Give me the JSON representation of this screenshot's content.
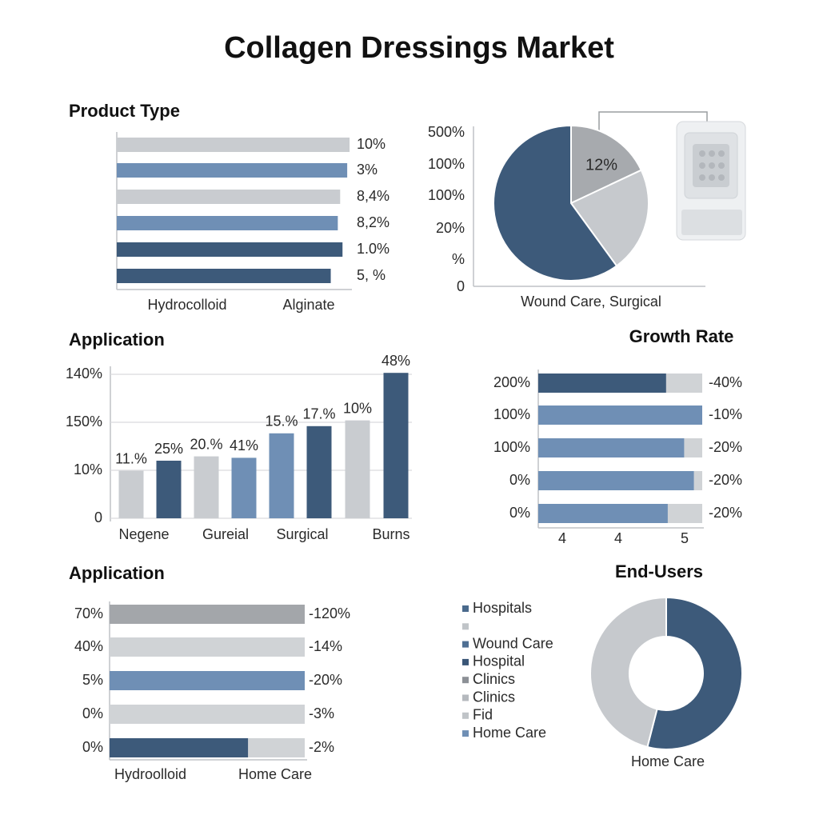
{
  "title": "Collagen Dressings Market",
  "chart_data": [
    {
      "type": "bar",
      "horizontal": true,
      "title": "Product Type",
      "categories": [
        "10%",
        "3%",
        "8,4%",
        "8,2%",
        "1.0%",
        "5, %"
      ],
      "values": [
        99,
        98,
        95,
        94,
        96,
        91
      ],
      "colors": [
        "#c9ccd0",
        "#6f8fb5",
        "#c9ccd0",
        "#6f8fb5",
        "#3d5a7a",
        "#3d5a7a"
      ],
      "xlim": [
        0,
        100
      ],
      "x_labels": [
        "Hydrocolloid",
        "Alginate"
      ]
    },
    {
      "type": "pie",
      "y_labels": [
        "500%",
        "100%",
        "100%",
        "20%",
        "%",
        "0"
      ],
      "x_label": "Wound Care, Surgical",
      "values": [
        18,
        22,
        60
      ],
      "colors": [
        "#a7aaae",
        "#c6c9cd",
        "#3d5a7a"
      ],
      "annotation": "12%"
    },
    {
      "type": "bar",
      "title": "Application",
      "y_labels": [
        "140%",
        "150%",
        "10%",
        "0"
      ],
      "values": [
        33,
        40,
        43,
        42,
        59,
        64,
        68,
        101
      ],
      "annotations": [
        "11.%",
        "25%",
        "20.%",
        "41%",
        "15.%",
        "17.%",
        "10%",
        "48%"
      ],
      "colors": [
        "#c9ccd0",
        "#3d5a7a",
        "#c9ccd0",
        "#6f8fb5",
        "#6f8fb5",
        "#3d5a7a",
        "#c9ccd0",
        "#3d5a7a"
      ],
      "ylim": [
        0,
        100
      ],
      "x_labels": [
        "Negene",
        "Gureial",
        "Surgical",
        "Burns"
      ]
    },
    {
      "type": "bar",
      "horizontal": true,
      "stacked": true,
      "title": "Growth Rate",
      "categories": [
        "200%",
        "100%",
        "100%",
        "0%",
        "0%"
      ],
      "end_labels": [
        "-40%",
        "-10%",
        "-20%",
        "-20%",
        "-20%"
      ],
      "values": [
        78,
        100,
        89,
        95,
        79
      ],
      "rest_values": [
        22,
        0,
        11,
        5,
        21
      ],
      "colors": [
        "#3d5a7a",
        "#6f8fb5",
        "#6f8fb5",
        "#6f8fb5",
        "#6f8fb5"
      ],
      "rest_color": "#d0d3d6",
      "xlim": [
        0,
        100
      ],
      "x_labels": [
        "4",
        "4",
        "5"
      ]
    },
    {
      "type": "bar",
      "horizontal": true,
      "stacked": true,
      "title": "Application",
      "categories": [
        "70%",
        "40%",
        "5%",
        "0%",
        "0%"
      ],
      "end_labels": [
        "-120%",
        "-14%",
        "-20%",
        "-3%",
        "-2%"
      ],
      "values": [
        100,
        100,
        100,
        100,
        71
      ],
      "rest_values": [
        0,
        0,
        0,
        0,
        29
      ],
      "colors": [
        "#a3a6aa",
        "#d0d3d6",
        "#6f8fb5",
        "#d0d3d6",
        "#3d5a7a"
      ],
      "rest_color": "#d0d3d6",
      "xlim": [
        0,
        100
      ],
      "x_labels": [
        "Hydroolloid",
        "Home Care"
      ]
    },
    {
      "type": "pie",
      "hole": true,
      "title": "End-Users",
      "legend": [
        "Hospitals",
        null,
        "Wound Care",
        "Hospital",
        "Clinics",
        "Clinics",
        "Fid",
        "Home Care"
      ],
      "legend_colors": [
        "#4a6a8c",
        "#c0c4c8",
        "#4f6f93",
        "#3a5677",
        "#8c9096",
        "#b5b9be",
        "#c0c4c8",
        "#6f8fb5"
      ],
      "values": [
        54,
        46
      ],
      "colors": [
        "#3d5a7a",
        "#c6c9cd"
      ],
      "x_label": "Home Care"
    }
  ]
}
